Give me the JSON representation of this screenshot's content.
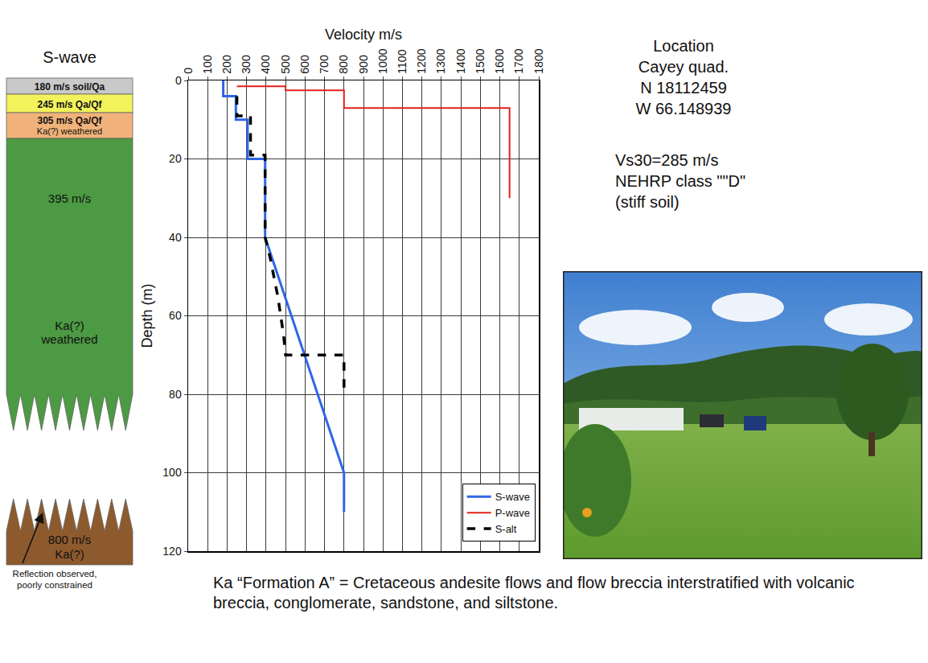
{
  "chart_data": {
    "type": "line",
    "x_title": "Velocity m/s",
    "y_title": "Depth (m)",
    "xlim": [
      0,
      1800
    ],
    "xticks": [
      0,
      100,
      200,
      300,
      400,
      500,
      600,
      700,
      800,
      900,
      1000,
      1100,
      1200,
      1300,
      1400,
      1500,
      1600,
      1700,
      1800
    ],
    "ylim": [
      120,
      0
    ],
    "yticks": [
      0,
      20,
      40,
      60,
      80,
      100,
      120
    ],
    "grid": true,
    "legend": "bottom right",
    "series": [
      {
        "name": "S-wave",
        "color": "#2f66e6",
        "line_style": "solid",
        "x": [
          180,
          180,
          245,
          245,
          305,
          305,
          395,
          395,
          800,
          800
        ],
        "y": [
          0,
          4,
          4,
          10,
          10,
          20,
          20,
          40,
          100,
          110
        ]
      },
      {
        "name": "P-wave",
        "color": "#e3201b",
        "line_style": "solid",
        "x": [
          250,
          500,
          500,
          800,
          800,
          1650,
          1650
        ],
        "y": [
          1.5,
          1.5,
          2.5,
          2.5,
          7,
          7,
          30
        ]
      },
      {
        "name": "S-alt",
        "color": "#000000",
        "line_style": "dashed",
        "x": [
          250,
          250,
          320,
          320,
          395,
          395,
          420,
          440,
          460,
          475,
          490,
          500,
          700,
          800,
          800
        ],
        "y": [
          4,
          9,
          9,
          19,
          19,
          40,
          45,
          50,
          55,
          60,
          65,
          70,
          70,
          70,
          80
        ]
      }
    ]
  },
  "column": {
    "title": "S-wave",
    "layers": [
      {
        "lines": [
          "180 m/s soil/Qa"
        ],
        "color": "#c9c9c9"
      },
      {
        "lines": [
          "245 m/s Qa/Qf"
        ],
        "color": "#f2f25a"
      },
      {
        "lines": [
          "305 m/s Qa/Qf",
          "Ka(?) weathered"
        ],
        "color": "#f0b27a"
      },
      {
        "lines": [
          "395 m/s",
          "Ka(?)",
          "weathered"
        ],
        "color": "#4c9a43"
      },
      {
        "lines": [
          "800 m/s",
          "Ka(?)"
        ],
        "color": "#8d5a2e"
      }
    ],
    "note": [
      "Reflection observed,",
      "poorly constrained"
    ]
  },
  "site": {
    "location": [
      "Location",
      "Cayey quad.",
      "N 18112459",
      "W 66.148939"
    ],
    "classification": [
      "Vs30=285 m/s",
      "NEHRP class \"\"D\"",
      "(stiff soil)"
    ]
  },
  "caption": "Ka “Formation A” = Cretaceous andesite flows and flow breccia interstratified with volcanic breccia, conglomerate, sandstone, and siltstone."
}
